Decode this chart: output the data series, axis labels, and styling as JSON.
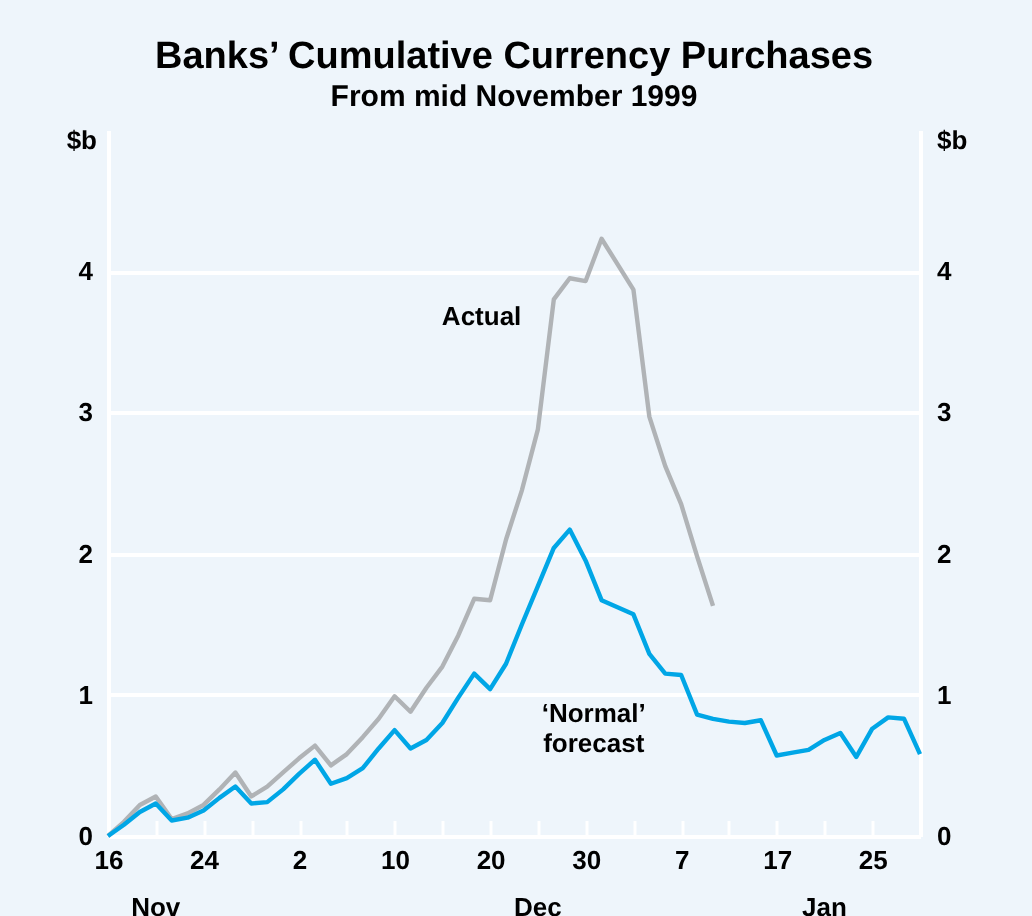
{
  "chart_data": {
    "type": "line",
    "title": "Banks’ Cumulative Currency Purchases",
    "subtitle": "From mid November 1999",
    "ylabel": "$b",
    "y2label": "$b",
    "categories": [
      "16",
      null,
      null,
      null,
      null,
      null,
      "24",
      null,
      null,
      null,
      null,
      null,
      "2",
      null,
      null,
      null,
      null,
      null,
      "10",
      null,
      null,
      null,
      null,
      null,
      "20",
      null,
      null,
      null,
      null,
      null,
      "30",
      null,
      null,
      null,
      null,
      null,
      "7",
      null,
      null,
      null,
      null,
      null,
      "17",
      null,
      null,
      null,
      null,
      null,
      "25",
      null,
      null,
      null
    ],
    "series": [
      {
        "name": "Actual",
        "color": "#b0b3b6",
        "values": [
          0,
          0.1,
          0.22,
          0.28,
          0.12,
          0.16,
          0.22,
          0.33,
          0.45,
          0.28,
          0.35,
          0.45,
          0.55,
          0.64,
          0.5,
          0.58,
          0.7,
          0.83,
          0.99,
          0.88,
          1.05,
          1.2,
          1.42,
          1.68,
          1.67,
          2.1,
          2.45,
          2.88,
          3.8,
          3.95,
          3.93,
          4.23,
          4.05,
          3.87,
          2.97,
          2.62,
          2.35,
          1.98,
          1.63,
          null,
          null,
          null,
          null,
          null,
          null,
          null,
          null,
          null,
          null,
          null,
          null,
          null
        ]
      },
      {
        "name": "‘Normal’ forecast",
        "color": "#00a6e6",
        "values": [
          0,
          0.08,
          0.17,
          0.23,
          0.11,
          0.13,
          0.18,
          0.27,
          0.35,
          0.23,
          0.24,
          0.33,
          0.44,
          0.54,
          0.37,
          0.41,
          0.48,
          0.62,
          0.75,
          0.62,
          0.68,
          0.8,
          0.98,
          1.15,
          1.04,
          1.22,
          1.5,
          1.77,
          2.04,
          2.17,
          1.95,
          1.67,
          1.62,
          1.57,
          1.29,
          1.15,
          1.14,
          0.86,
          0.83,
          0.81,
          0.8,
          0.82,
          0.57,
          0.59,
          0.61,
          0.68,
          0.73,
          0.56,
          0.76,
          0.84,
          0.83,
          0.58
        ]
      }
    ],
    "annotations": [
      "Nov",
      "Dec",
      "Jan"
    ],
    "ylim": [
      0,
      5
    ],
    "yticks": [
      0,
      1,
      2,
      3,
      4
    ],
    "y2lim": [
      0,
      5
    ],
    "y2ticks": [
      0,
      1,
      2,
      3,
      4
    ],
    "grid": "y"
  }
}
